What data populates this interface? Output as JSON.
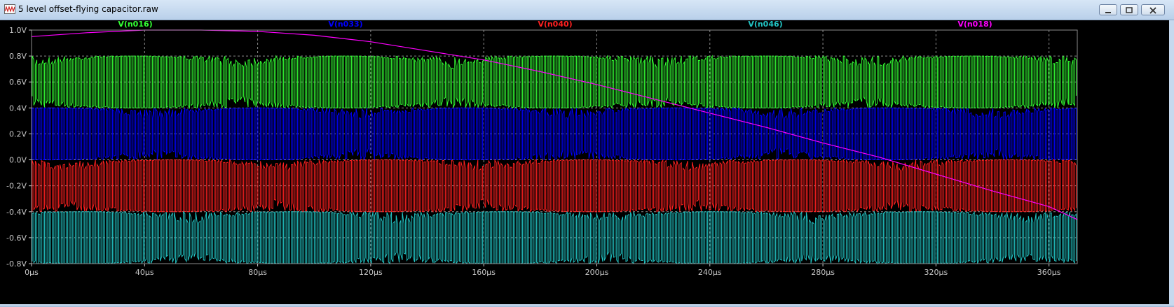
{
  "window": {
    "title": "5 level offset-flying capacitor.raw",
    "buttons": [
      "minimize",
      "maximize",
      "close"
    ]
  },
  "colors": {
    "background": "#000000",
    "grid": "#8c8c8c",
    "axis_text": "#c8c8c8",
    "V(n016)": "#33ff33",
    "V(n033)": "#0000ff",
    "V(n040)": "#ff2020",
    "V(n046)": "#22c4c4",
    "V(n018)": "#ff00ff"
  },
  "chart_data": {
    "type": "line",
    "title": "",
    "xlabel": "",
    "ylabel": "",
    "xlim": [
      0,
      370
    ],
    "ylim": [
      -0.8,
      1.0
    ],
    "x_unit": "µs",
    "y_unit": "V",
    "grid": true,
    "legend_placement": "top",
    "x_ticks": [
      0,
      40,
      80,
      120,
      160,
      200,
      240,
      280,
      320,
      360
    ],
    "x_tick_labels": [
      "0µs",
      "40µs",
      "80µs",
      "120µs",
      "160µs",
      "200µs",
      "240µs",
      "280µs",
      "320µs",
      "360µs"
    ],
    "y_ticks": [
      1.0,
      0.8,
      0.6,
      0.4,
      0.2,
      0.0,
      -0.2,
      -0.4,
      -0.6,
      -0.8
    ],
    "y_tick_labels": [
      "1.0V",
      "0.8V",
      "0.6V",
      "0.4V",
      "0.2V",
      "0.0V",
      "-0.2V",
      "-0.4V",
      "-0.6V",
      "-0.8V"
    ],
    "series": [
      {
        "name": "V(n016)",
        "color": "#33ff33",
        "kind": "pwm",
        "low": 0.4,
        "high": 0.8
      },
      {
        "name": "V(n033)",
        "color": "#0000ff",
        "kind": "pwm",
        "low": 0.0,
        "high": 0.4
      },
      {
        "name": "V(n040)",
        "color": "#ff2020",
        "kind": "pwm",
        "low": -0.4,
        "high": 0.0
      },
      {
        "name": "V(n046)",
        "color": "#22c4c4",
        "kind": "pwm",
        "low": -0.8,
        "high": -0.4
      },
      {
        "name": "V(n018)",
        "color": "#ff00ff",
        "kind": "line",
        "x": [
          0,
          20,
          40,
          60,
          80,
          100,
          120,
          140,
          160,
          180,
          200,
          220,
          240,
          260,
          280,
          300,
          320,
          340,
          360,
          370
        ],
        "values": [
          0.95,
          0.98,
          1.0,
          1.0,
          0.99,
          0.96,
          0.91,
          0.84,
          0.77,
          0.68,
          0.58,
          0.47,
          0.36,
          0.25,
          0.13,
          0.02,
          -0.11,
          -0.24,
          -0.36,
          -0.46
        ]
      }
    ]
  }
}
